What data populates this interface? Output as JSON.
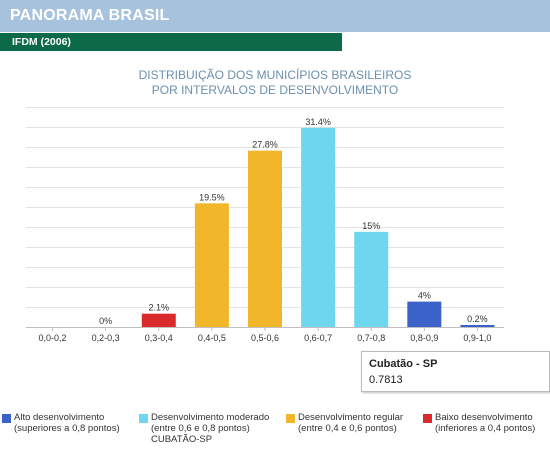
{
  "header": {
    "title": "PANORAMA BRASIL",
    "subtitle": "IFDM (2006)"
  },
  "chart_data": {
    "type": "bar",
    "title": "DISTRIBUIÇÃO DOS MUNICÍPIOS BRASILEIROS\nPOR INTERVALOS DE DESENVOLVIMENTO",
    "xlabel": "",
    "ylabel": "",
    "ylim": [
      0,
      35
    ],
    "grid": true,
    "legend_position": "bottom",
    "categories": [
      "0,0-0,2",
      "0,2-0,3",
      "0,3-0,4",
      "0,4-0,5",
      "0,5-0,6",
      "0,6-0,7",
      "0,7-0,8",
      "0,8-0,9",
      "0,9-1,0"
    ],
    "values": [
      0,
      0,
      2.1,
      19.5,
      27.8,
      31.4,
      15,
      4,
      0.2
    ],
    "data_labels": [
      "",
      "0%",
      "2.1%",
      "19.5%",
      "27.8%",
      "31.4%",
      "15%",
      "4%",
      "0.2%"
    ],
    "bar_colors": [
      "#d92b2b",
      "#d92b2b",
      "#d92b2b",
      "#f2b62a",
      "#f2b62a",
      "#6fd6f0",
      "#6fd6f0",
      "#3a62c8",
      "#3a62c8"
    ],
    "legend": [
      {
        "color": "#3a62c8",
        "line1": "Alto desenvolvimento",
        "line2": "(superiores a 0,8 pontos)"
      },
      {
        "color": "#6fd6f0",
        "line1": "Desenvolvimento moderado",
        "line2": "(entre 0,6 e 0,8 pontos)"
      },
      {
        "color": "#f2b62a",
        "line1": "Desenvolvimento regular",
        "line2": "(entre 0,4 e 0,6 pontos)"
      },
      {
        "color": "#d92b2b",
        "line1": "Baixo desenvolvimento",
        "line2": "(inferiores a 0,4 pontos)"
      }
    ],
    "marker_label": "CUBATÃO-SP"
  },
  "tooltip": {
    "title": "Cubatão - SP",
    "value": "0.7813"
  }
}
